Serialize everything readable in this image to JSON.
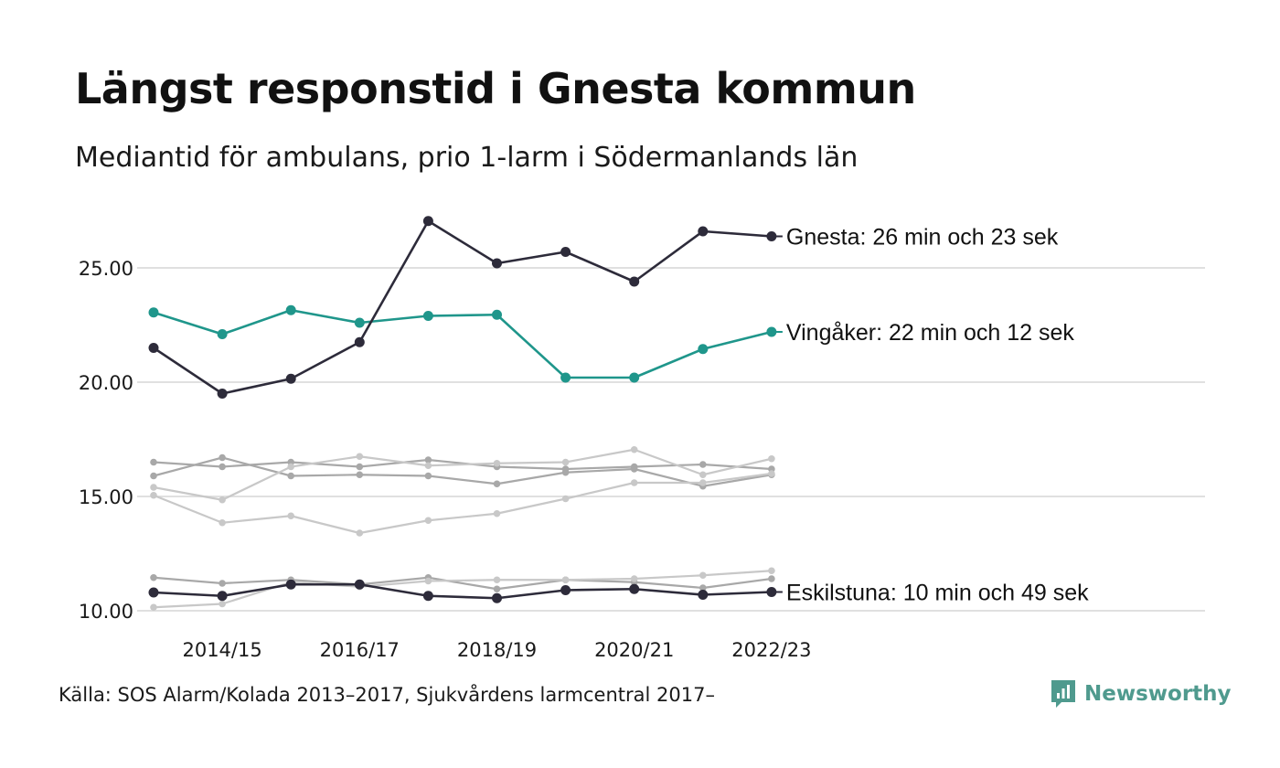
{
  "header": {
    "title": "Längst responstid i Gnesta kommun",
    "subtitle": "Mediantid för ambulans, prio 1-larm i Södermanlands län"
  },
  "footer": {
    "source": "Källa: SOS Alarm/Kolada 2013–2017, Sjukvårdens larmcentral 2017–",
    "brand": "Newsworthy",
    "brand_icon": "newsworthy-logo-icon"
  },
  "colors": {
    "gnesta": "#2d2b3a",
    "vingaker": "#1f968b",
    "eskilstuna": "#2d2b3a",
    "grey_dark": "#a8a8a8",
    "grey_light": "#c8c8c8",
    "grid": "#e0e0e0",
    "brand": "#4f9a8e"
  },
  "chart_data": {
    "type": "line",
    "x": [
      "2013/14",
      "2014/15",
      "2015/16",
      "2016/17",
      "2017/18",
      "2018/19",
      "2019/20",
      "2020/21",
      "2021/22",
      "2022/23"
    ],
    "x_tick_labels": [
      "2014/15",
      "2016/17",
      "2018/19",
      "2020/21",
      "2022/23"
    ],
    "y_ticks": [
      "10.00",
      "15.00",
      "20.00",
      "25.00"
    ],
    "ylim": [
      10,
      27.2
    ],
    "grid": true,
    "series": [
      {
        "key": "grey1",
        "style": "grey_dark",
        "values": [
          16.5,
          16.3,
          16.5,
          16.3,
          16.6,
          16.3,
          16.2,
          16.3,
          16.4,
          16.2
        ]
      },
      {
        "key": "grey2",
        "style": "grey_dark",
        "values": [
          15.9,
          16.7,
          15.9,
          15.95,
          15.9,
          15.55,
          16.05,
          16.2,
          15.45,
          15.95
        ]
      },
      {
        "key": "grey3",
        "style": "grey_light",
        "values": [
          15.4,
          14.85,
          16.3,
          16.75,
          16.35,
          16.45,
          16.5,
          17.05,
          15.95,
          16.65
        ]
      },
      {
        "key": "grey4",
        "style": "grey_light",
        "values": [
          15.05,
          13.85,
          14.15,
          13.4,
          13.95,
          14.25,
          14.9,
          15.6,
          15.6,
          16.0
        ]
      },
      {
        "key": "grey5",
        "style": "grey_dark",
        "values": [
          11.45,
          11.2,
          11.35,
          11.15,
          11.45,
          10.95,
          11.35,
          11.25,
          11.0,
          11.4
        ]
      },
      {
        "key": "grey6",
        "style": "grey_light",
        "values": [
          10.15,
          10.3,
          11.25,
          11.05,
          11.3,
          11.35,
          11.35,
          11.4,
          11.55,
          11.75
        ]
      },
      {
        "name": "Eskilstuna",
        "key": "eskilstuna",
        "style": "eskilstuna",
        "values": [
          10.8,
          10.65,
          11.15,
          11.15,
          10.65,
          10.55,
          10.9,
          10.95,
          10.7,
          10.82
        ],
        "label": "Eskilstuna: 10 min och 49 sek"
      },
      {
        "name": "Vingåker",
        "key": "vingaker",
        "style": "vingaker",
        "values": [
          23.05,
          22.1,
          23.15,
          22.6,
          22.9,
          22.95,
          20.2,
          20.2,
          21.45,
          22.2
        ],
        "label": "Vingåker: 22 min och 12 sek"
      },
      {
        "name": "Gnesta",
        "key": "gnesta",
        "style": "gnesta",
        "values": [
          21.5,
          19.5,
          20.15,
          21.75,
          27.05,
          25.2,
          25.7,
          24.4,
          26.6,
          26.38
        ],
        "label": "Gnesta: 26 min och 23 sek"
      }
    ]
  }
}
